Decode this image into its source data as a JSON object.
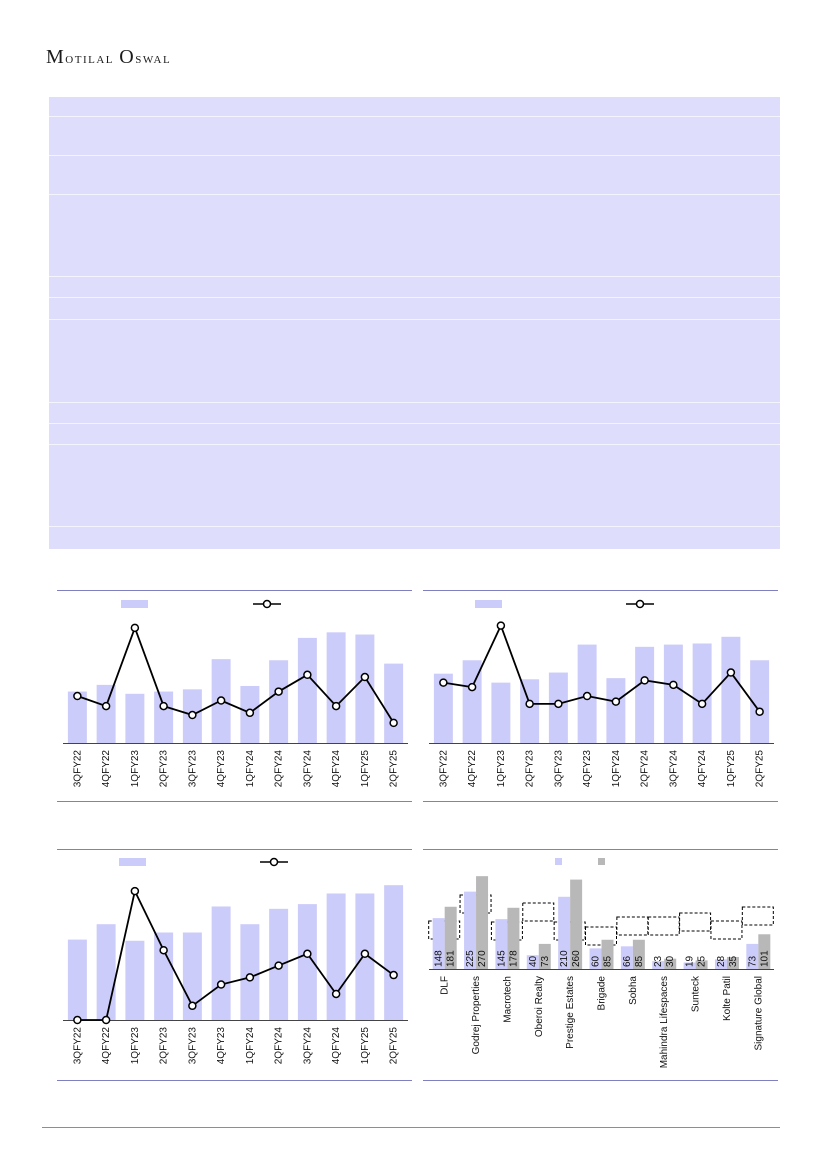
{
  "header": {
    "brand": "Motilal Oswal",
    "brand_parts": [
      "M",
      "otilal ",
      "O",
      "swal"
    ]
  },
  "colors": {
    "bar": "#ccccfa",
    "line": "#000000",
    "rule": "#8080c0",
    "table_fill": "#dedefc",
    "gray_bar": "#b8b8b8"
  },
  "chart_data": [
    {
      "type": "bar",
      "categories": [
        "3QFY22",
        "4QFY22",
        "1QFY23",
        "2QFY23",
        "3QFY23",
        "4QFY23",
        "1QFY24",
        "2QFY24",
        "3QFY24",
        "4QFY24",
        "1QFY25",
        "2QFY25"
      ],
      "series": [
        {
          "kind": "bar",
          "values": [
            46,
            52,
            44,
            46,
            48,
            75,
            51,
            74,
            94,
            99,
            97,
            71
          ]
        },
        {
          "kind": "line",
          "values": [
            42,
            33,
            103,
            33,
            25,
            38,
            27,
            46,
            61,
            33,
            59,
            18
          ]
        }
      ],
      "ylim": [
        0,
        110
      ]
    },
    {
      "type": "bar",
      "categories": [
        "3QFY22",
        "4QFY22",
        "1QFY23",
        "2QFY23",
        "3QFY23",
        "4QFY23",
        "1QFY24",
        "2QFY24",
        "3QFY24",
        "4QFY24",
        "1QFY25",
        "2QFY25"
      ],
      "series": [
        {
          "kind": "bar",
          "values": [
            62,
            74,
            54,
            57,
            63,
            88,
            58,
            86,
            88,
            89,
            95,
            74
          ]
        },
        {
          "kind": "line",
          "values": [
            54,
            50,
            105,
            35,
            35,
            42,
            37,
            56,
            52,
            35,
            63,
            28
          ]
        }
      ],
      "ylim": [
        0,
        110
      ]
    },
    {
      "type": "bar",
      "categories": [
        "3QFY22",
        "4QFY22",
        "1QFY23",
        "2QFY23",
        "3QFY23",
        "4QFY23",
        "1QFY24",
        "2QFY24",
        "3QFY24",
        "4QFY24",
        "1QFY25",
        "2QFY25"
      ],
      "series": [
        {
          "kind": "bar",
          "values": [
            68,
            81,
            67,
            74,
            74,
            96,
            81,
            94,
            98,
            107,
            107,
            114
          ]
        },
        {
          "kind": "line",
          "values": [
            0,
            0,
            109,
            59,
            12,
            30,
            36,
            46,
            56,
            22,
            56,
            38
          ]
        }
      ],
      "ylim": [
        0,
        115
      ]
    },
    {
      "type": "bar",
      "categories": [
        "DLF",
        "Godrej Properties",
        "Macrotech",
        "Oberoi Realty",
        "Prestige Estates",
        "Brigade",
        "Sobha",
        "Mahindra Lifespaces",
        "Sunteck",
        "Kolte Patil",
        "Signature Global"
      ],
      "series": [
        {
          "kind": "bar",
          "values": [
            148,
            225,
            145,
            40,
            210,
            60,
            66,
            23,
            19,
            28,
            73
          ]
        },
        {
          "kind": "bar",
          "values": [
            181,
            270,
            178,
            73,
            260,
            85,
            85,
            30,
            25,
            35,
            101
          ]
        }
      ],
      "data_labels": [
        [
          "148",
          "225",
          "145",
          "40",
          "210",
          "60",
          "66",
          "23",
          "19",
          "28",
          "73"
        ],
        [
          "181",
          "270",
          "178",
          "73",
          "260",
          "85",
          "85",
          "30",
          "25",
          "35",
          "101"
        ]
      ],
      "ylim": [
        0,
        285
      ]
    }
  ]
}
